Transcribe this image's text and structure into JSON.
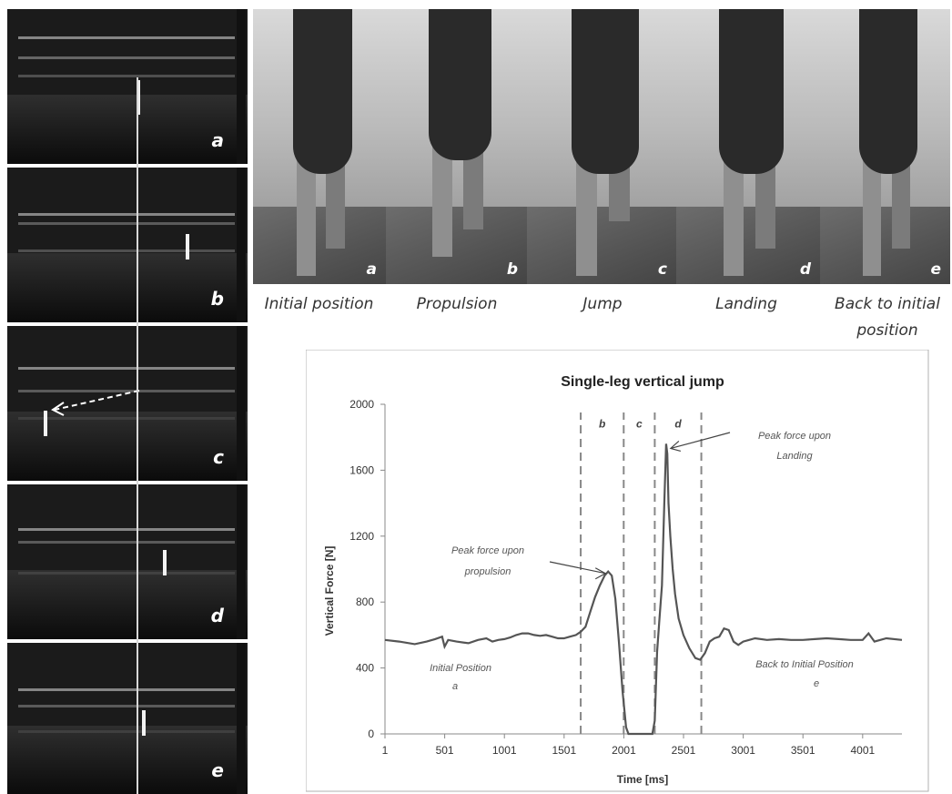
{
  "ultrasound_panels": [
    "a",
    "b",
    "c",
    "d",
    "e"
  ],
  "photo_panels": [
    "a",
    "b",
    "c",
    "d",
    "e"
  ],
  "phases": [
    "Initial position",
    "Propulsion",
    "Jump",
    "Landing",
    "Back to initial position"
  ],
  "chart_data": {
    "type": "line",
    "title": "Single-leg vertical jump",
    "xlabel": "Time [ms]",
    "ylabel": "Vertical Force [N]",
    "xlim": [
      1,
      4330
    ],
    "ylim": [
      0,
      2000
    ],
    "xticks": [
      "1",
      "501",
      "1001",
      "1501",
      "2001",
      "2501",
      "3001",
      "3501",
      "4001"
    ],
    "yticks": [
      "0",
      "400",
      "800",
      "1200",
      "1600",
      "2000"
    ],
    "grid": false,
    "series": [
      {
        "x": [
          1,
          120,
          250,
          350,
          420,
          480,
          500,
          530,
          600,
          700,
          780,
          850,
          900,
          950,
          1001,
          1050,
          1100,
          1150,
          1200,
          1250,
          1300,
          1350,
          1400,
          1450,
          1500,
          1550,
          1600,
          1640,
          1680,
          1720,
          1760,
          1800,
          1840,
          1870,
          1900,
          1930,
          1960,
          1990,
          2020,
          2040,
          2070,
          2100,
          2150,
          2200,
          2240,
          2260,
          2280,
          2300,
          2320,
          2340,
          2355,
          2365,
          2375,
          2390,
          2410,
          2430,
          2460,
          2500,
          2550,
          2600,
          2640,
          2680,
          2720,
          2760,
          2800,
          2840,
          2880,
          2920,
          2960,
          3001,
          3050,
          3100,
          3200,
          3300,
          3400,
          3500,
          3600,
          3700,
          3800,
          3900,
          4001,
          4050,
          4100,
          4200,
          4330
        ],
        "y": [
          570,
          560,
          545,
          560,
          575,
          590,
          530,
          570,
          560,
          550,
          570,
          580,
          560,
          570,
          575,
          585,
          600,
          610,
          610,
          600,
          595,
          600,
          590,
          580,
          580,
          590,
          600,
          620,
          650,
          740,
          830,
          900,
          960,
          985,
          960,
          820,
          560,
          260,
          40,
          0,
          0,
          0,
          0,
          0,
          0,
          80,
          500,
          700,
          900,
          1400,
          1760,
          1700,
          1400,
          1200,
          1000,
          850,
          700,
          600,
          520,
          460,
          450,
          490,
          560,
          580,
          590,
          640,
          630,
          560,
          540,
          560,
          570,
          580,
          570,
          575,
          570,
          570,
          575,
          580,
          575,
          570,
          570,
          610,
          560,
          580,
          570
        ]
      }
    ],
    "phase_markers_x": [
      1640,
      2000,
      2260,
      2650
    ],
    "phase_labels": [
      "b",
      "c",
      "d"
    ],
    "annotations": [
      {
        "text": "Peak force upon propulsion",
        "x": 1870,
        "y": 985
      },
      {
        "text": "Peak force upon Landing",
        "x": 2355,
        "y": 1760
      },
      {
        "text": "Initial Position",
        "sub": "a"
      },
      {
        "text": "Back to Initial Position",
        "sub": "e"
      }
    ]
  }
}
